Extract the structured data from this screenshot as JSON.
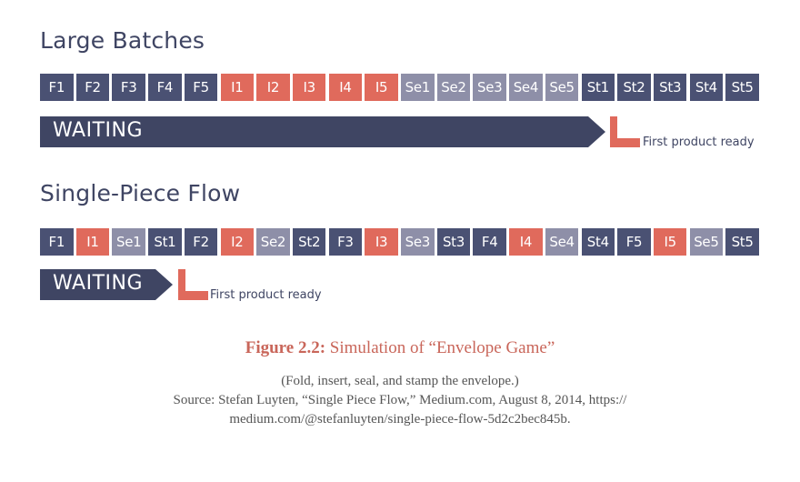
{
  "colors": {
    "dark": "#4a5173",
    "red": "#e06a5c",
    "grey": "#8e8fa8",
    "text": "#3f4563",
    "caption_accent": "#c9665a"
  },
  "large_batches": {
    "title": "Large Batches",
    "steps": [
      {
        "label": "F1",
        "kind": "F"
      },
      {
        "label": "F2",
        "kind": "F"
      },
      {
        "label": "F3",
        "kind": "F"
      },
      {
        "label": "F4",
        "kind": "F"
      },
      {
        "label": "F5",
        "kind": "F"
      },
      {
        "label": "I1",
        "kind": "I"
      },
      {
        "label": "I2",
        "kind": "I"
      },
      {
        "label": "I3",
        "kind": "I"
      },
      {
        "label": "I4",
        "kind": "I"
      },
      {
        "label": "I5",
        "kind": "I"
      },
      {
        "label": "Se1",
        "kind": "Se"
      },
      {
        "label": "Se2",
        "kind": "Se"
      },
      {
        "label": "Se3",
        "kind": "Se"
      },
      {
        "label": "Se4",
        "kind": "Se"
      },
      {
        "label": "Se5",
        "kind": "Se"
      },
      {
        "label": "St1",
        "kind": "St"
      },
      {
        "label": "St2",
        "kind": "St"
      },
      {
        "label": "St3",
        "kind": "St"
      },
      {
        "label": "St4",
        "kind": "St"
      },
      {
        "label": "St5",
        "kind": "St"
      }
    ],
    "waiting_label": "WAITING",
    "marker_label": "First product ready"
  },
  "single_piece": {
    "title": "Single-Piece Flow",
    "steps": [
      {
        "label": "F1",
        "kind": "F"
      },
      {
        "label": "I1",
        "kind": "I"
      },
      {
        "label": "Se1",
        "kind": "Se"
      },
      {
        "label": "St1",
        "kind": "St"
      },
      {
        "label": "F2",
        "kind": "F"
      },
      {
        "label": "I2",
        "kind": "I"
      },
      {
        "label": "Se2",
        "kind": "Se"
      },
      {
        "label": "St2",
        "kind": "St"
      },
      {
        "label": "F3",
        "kind": "F"
      },
      {
        "label": "I3",
        "kind": "I"
      },
      {
        "label": "Se3",
        "kind": "Se"
      },
      {
        "label": "St3",
        "kind": "St"
      },
      {
        "label": "F4",
        "kind": "F"
      },
      {
        "label": "I4",
        "kind": "I"
      },
      {
        "label": "Se4",
        "kind": "Se"
      },
      {
        "label": "St4",
        "kind": "St"
      },
      {
        "label": "F5",
        "kind": "F"
      },
      {
        "label": "I5",
        "kind": "I"
      },
      {
        "label": "Se5",
        "kind": "Se"
      },
      {
        "label": "St5",
        "kind": "St"
      }
    ],
    "waiting_label": "WAITING",
    "marker_label": "First product ready"
  },
  "caption": {
    "figure_label": "Figure 2.2:",
    "figure_title": "Simulation of “Envelope Game”",
    "line1": "(Fold, insert, seal, and stamp the envelope.)",
    "line2": "Source: Stefan Luyten, “Single Piece Flow,” Medium.com, August 8, 2014, https://",
    "line3": "medium.com/@stefanluyten/single-piece-flow-5d2c2bec845b."
  }
}
